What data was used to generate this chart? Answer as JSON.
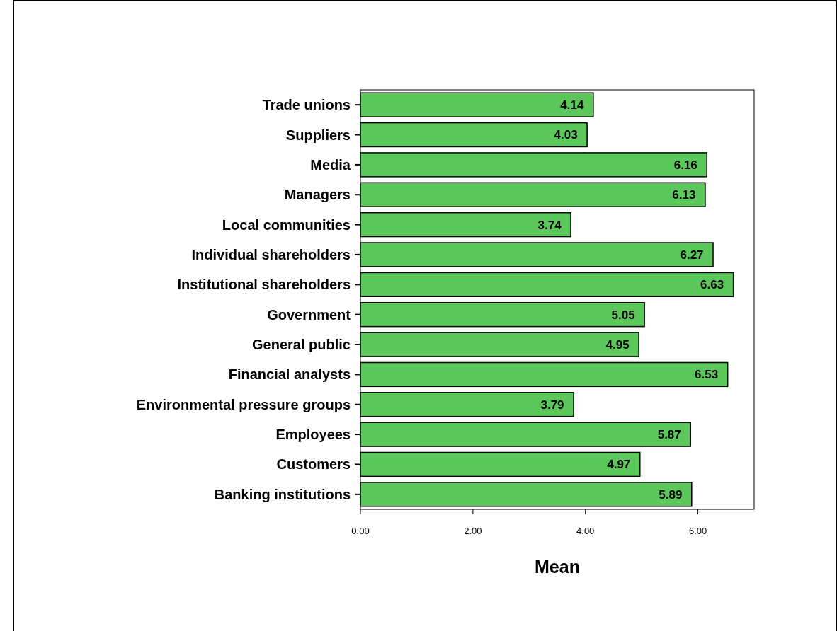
{
  "chart_data": {
    "type": "bar",
    "orientation": "horizontal",
    "xlabel": "Mean",
    "categories": [
      "Trade unions",
      "Suppliers",
      "Media",
      "Managers",
      "Local communities",
      "Individual shareholders",
      "Institutional shareholders",
      "Government",
      "General public",
      "Financial analysts",
      "Environmental pressure groups",
      "Employees",
      "Customers",
      "Banking institutions"
    ],
    "values": [
      4.14,
      4.03,
      6.16,
      6.13,
      3.74,
      6.27,
      6.63,
      5.05,
      4.95,
      6.53,
      3.79,
      5.87,
      4.97,
      5.89
    ],
    "color": "#5cc85c",
    "data_labels": true,
    "xlim": [
      0,
      7
    ],
    "xticks": [
      {
        "value": 0,
        "label": "0.00"
      },
      {
        "value": 2,
        "label": "2.00"
      },
      {
        "value": 4,
        "label": "4.00"
      },
      {
        "value": 6,
        "label": "6.00"
      }
    ],
    "grid": false
  }
}
